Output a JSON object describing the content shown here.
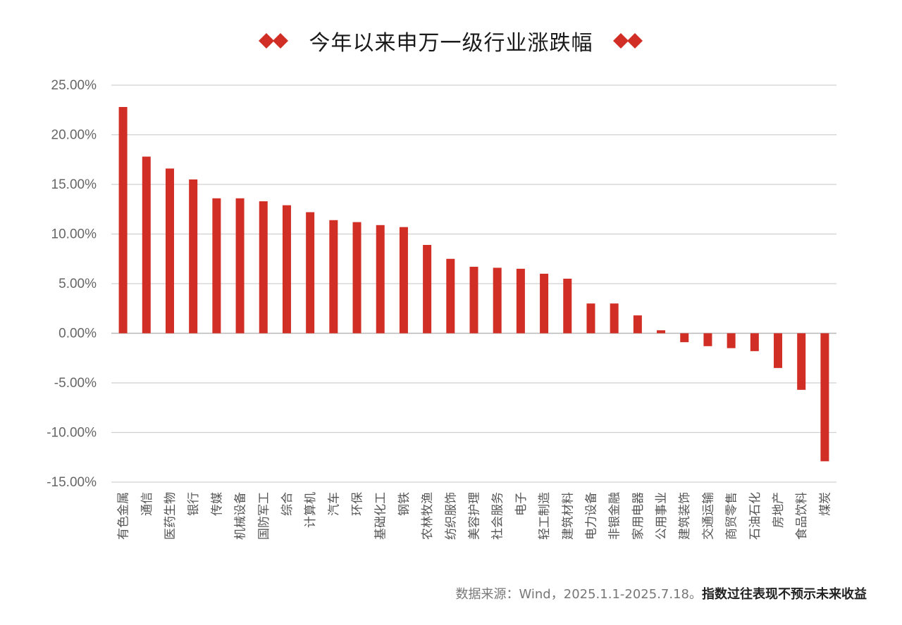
{
  "chart_data": {
    "type": "bar",
    "title": "今年以来申万一级行业涨跌幅",
    "xlabel": "",
    "ylabel": "",
    "ylim": [
      -15,
      25
    ],
    "yticks": [
      "25.00%",
      "20.00%",
      "15.00%",
      "10.00%",
      "5.00%",
      "0.00%",
      "-5.00%",
      "-10.00%",
      "-15.00%"
    ],
    "ytick_values": [
      25,
      20,
      15,
      10,
      5,
      0,
      -5,
      -10,
      -15
    ],
    "grid": true,
    "bar_color": "#d12e25",
    "categories": [
      "有色金属",
      "通信",
      "医药生物",
      "银行",
      "传媒",
      "机械设备",
      "国防军工",
      "综合",
      "计算机",
      "汽车",
      "环保",
      "基础化工",
      "钢铁",
      "农林牧渔",
      "纺织服饰",
      "美容护理",
      "社会服务",
      "电子",
      "轻工制造",
      "建筑材料",
      "电力设备",
      "非银金融",
      "家用电器",
      "公用事业",
      "建筑装饰",
      "交通运输",
      "商贸零售",
      "石油石化",
      "房地产",
      "食品饮料",
      "煤炭"
    ],
    "values": [
      22.8,
      17.8,
      16.6,
      15.5,
      13.6,
      13.6,
      13.3,
      12.9,
      12.2,
      11.4,
      11.2,
      10.9,
      10.7,
      8.9,
      7.5,
      6.7,
      6.6,
      6.5,
      6.0,
      5.5,
      3.0,
      3.0,
      1.8,
      0.3,
      -0.9,
      -1.3,
      -1.5,
      -1.8,
      -3.5,
      -5.7,
      -12.9
    ]
  },
  "footer": {
    "source_text": "数据来源：Wind，2025.1.1-2025.7.18。",
    "disclaimer": "指数过往表现不预示未来收益"
  },
  "colors": {
    "accent": "#d12e25",
    "grid": "#d0d0d0",
    "text": "#666666"
  }
}
